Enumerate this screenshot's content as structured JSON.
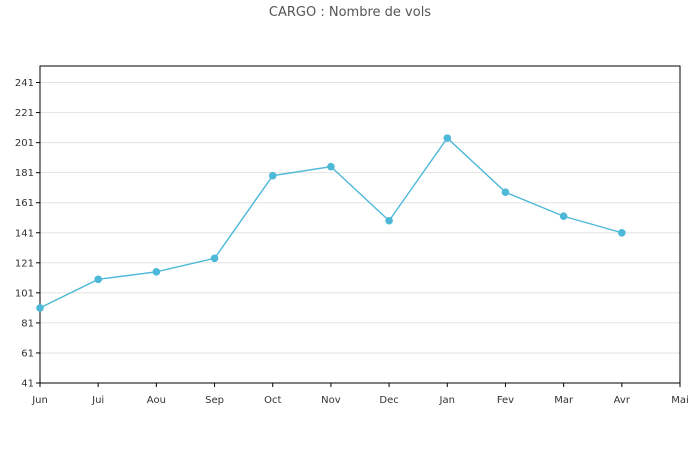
{
  "chart_data": {
    "type": "line",
    "title": "CARGO : Nombre de vols",
    "xlabel": "",
    "ylabel": "",
    "x_tick_labels": [
      "Jun",
      "Jui",
      "Aou",
      "Sep",
      "Oct",
      "Nov",
      "Dec",
      "Jan",
      "Fev",
      "Mar",
      "Avr",
      "Mai"
    ],
    "y_tick_labels": [
      "41",
      "61",
      "81",
      "101",
      "121",
      "141",
      "161",
      "181",
      "201",
      "221",
      "241"
    ],
    "ylim": [
      41,
      252
    ],
    "grid": true,
    "series": [
      {
        "color": "#4db8d8",
        "categories": [
          "Jun",
          "Jui",
          "Aou",
          "Sep",
          "Oct",
          "Nov",
          "Dec",
          "Jan",
          "Fev",
          "Mar",
          "Avr"
        ],
        "values": [
          91,
          110,
          115,
          124,
          179,
          185,
          149,
          204,
          168,
          152,
          141
        ]
      }
    ]
  }
}
